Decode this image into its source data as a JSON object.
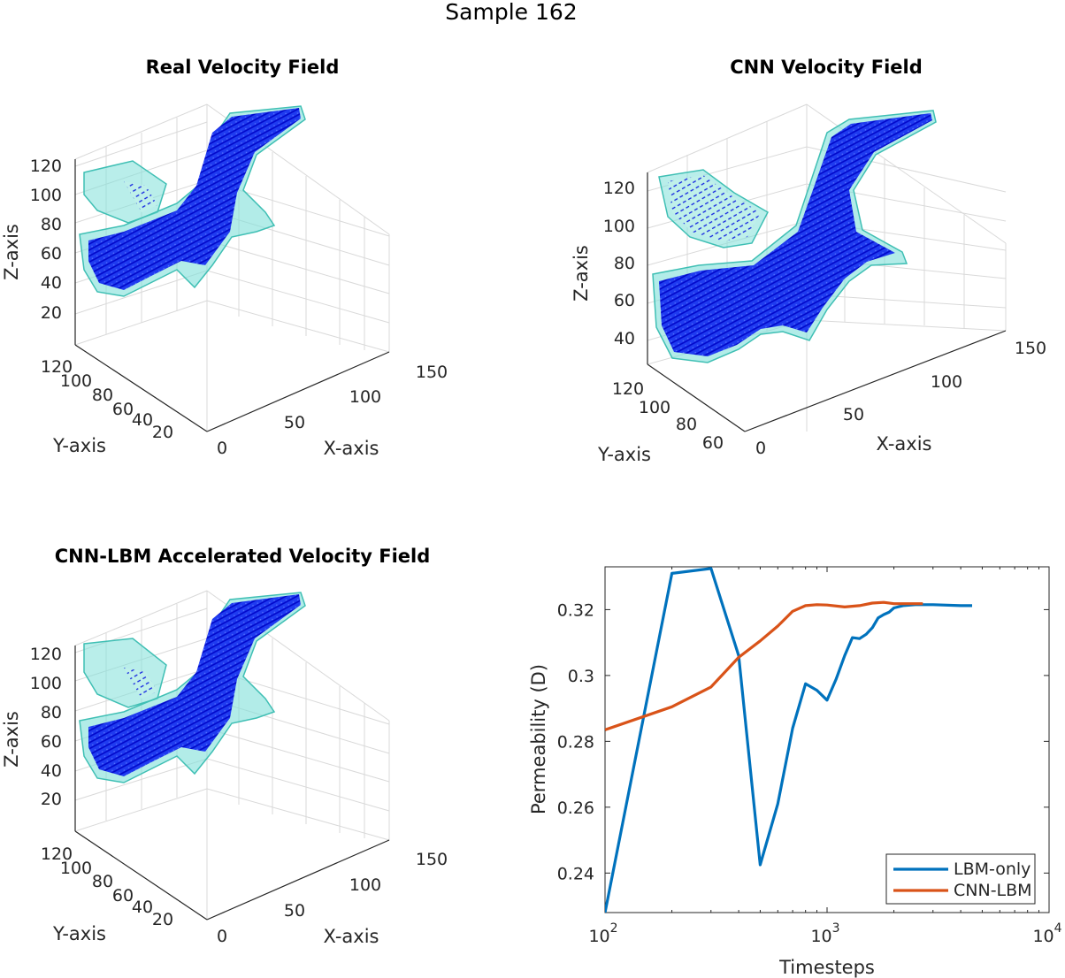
{
  "figure": {
    "supertitle": "Sample 162"
  },
  "panels": {
    "real": {
      "title": "Real Velocity Field",
      "z_ticks": [
        "120",
        "100",
        "80",
        "60",
        "40",
        "20"
      ],
      "y_ticks": [
        "120",
        "100",
        "80",
        "60",
        "40",
        "20"
      ],
      "x_ticks": [
        "0",
        "50",
        "100",
        "150"
      ],
      "xlabel": "X-axis",
      "ylabel": "Y-axis",
      "zlabel": "Z-axis"
    },
    "cnn": {
      "title": "CNN Velocity Field",
      "z_ticks": [
        "120",
        "100",
        "80",
        "60",
        "40"
      ],
      "y_ticks": [
        "120",
        "100",
        "80",
        "60"
      ],
      "x_ticks": [
        "0",
        "50",
        "100",
        "150"
      ],
      "xlabel": "X-axis",
      "ylabel": "Y-axis",
      "zlabel": "Z-axis"
    },
    "cnnlbm": {
      "title": "CNN-LBM Accelerated Velocity Field",
      "z_ticks": [
        "120",
        "100",
        "80",
        "60",
        "40",
        "20"
      ],
      "y_ticks": [
        "120",
        "100",
        "80",
        "60",
        "40",
        "20"
      ],
      "x_ticks": [
        "0",
        "50",
        "100",
        "150"
      ],
      "xlabel": "X-axis",
      "ylabel": "Y-axis",
      "zlabel": "Z-axis"
    }
  },
  "colors": {
    "vector_blue": "#0a1ee6",
    "isosurface_cyan": "#7fe0d8",
    "isosurface_edge": "#3fbfb4"
  },
  "chart_data": {
    "type": "line",
    "xlabel": "Timesteps",
    "ylabel": "Permeability (D)",
    "xscale": "log",
    "xlim": [
      100,
      10000
    ],
    "ylim": [
      0.228,
      0.333
    ],
    "xticks": [
      100,
      1000,
      10000
    ],
    "xtick_labels": [
      {
        "base": "10",
        "exp": "2"
      },
      {
        "base": "10",
        "exp": "3"
      },
      {
        "base": "10",
        "exp": "4"
      }
    ],
    "yticks": [
      0.24,
      0.26,
      0.28,
      0.3,
      0.32
    ],
    "ytick_labels": [
      "0.24",
      "0.26",
      "0.28",
      "0.3",
      "0.32"
    ],
    "legend_position": "bottom-right",
    "grid": false,
    "series": [
      {
        "name": "LBM-only",
        "color": "#0072BD",
        "x": [
          100,
          200,
          300,
          400,
          500,
          600,
          700,
          800,
          900,
          1000,
          1100,
          1200,
          1300,
          1400,
          1500,
          1600,
          1700,
          1800,
          1900,
          2000,
          2200,
          2500,
          3000,
          4000,
          4500
        ],
        "y": [
          0.228,
          0.331,
          0.3325,
          0.306,
          0.2425,
          0.261,
          0.284,
          0.2975,
          0.2955,
          0.2925,
          0.299,
          0.306,
          0.3115,
          0.3112,
          0.3125,
          0.3145,
          0.3175,
          0.3185,
          0.3192,
          0.3205,
          0.3212,
          0.3215,
          0.3215,
          0.3212,
          0.3212
        ]
      },
      {
        "name": "CNN-LBM",
        "color": "#D95319",
        "x": [
          100,
          200,
          300,
          400,
          500,
          600,
          700,
          800,
          900,
          1000,
          1200,
          1400,
          1600,
          1800,
          2000,
          2300,
          2700
        ],
        "y": [
          0.2835,
          0.2905,
          0.2965,
          0.3055,
          0.3105,
          0.315,
          0.3195,
          0.3212,
          0.3215,
          0.3214,
          0.3208,
          0.3212,
          0.322,
          0.3222,
          0.3218,
          0.3218,
          0.3218
        ]
      }
    ]
  }
}
